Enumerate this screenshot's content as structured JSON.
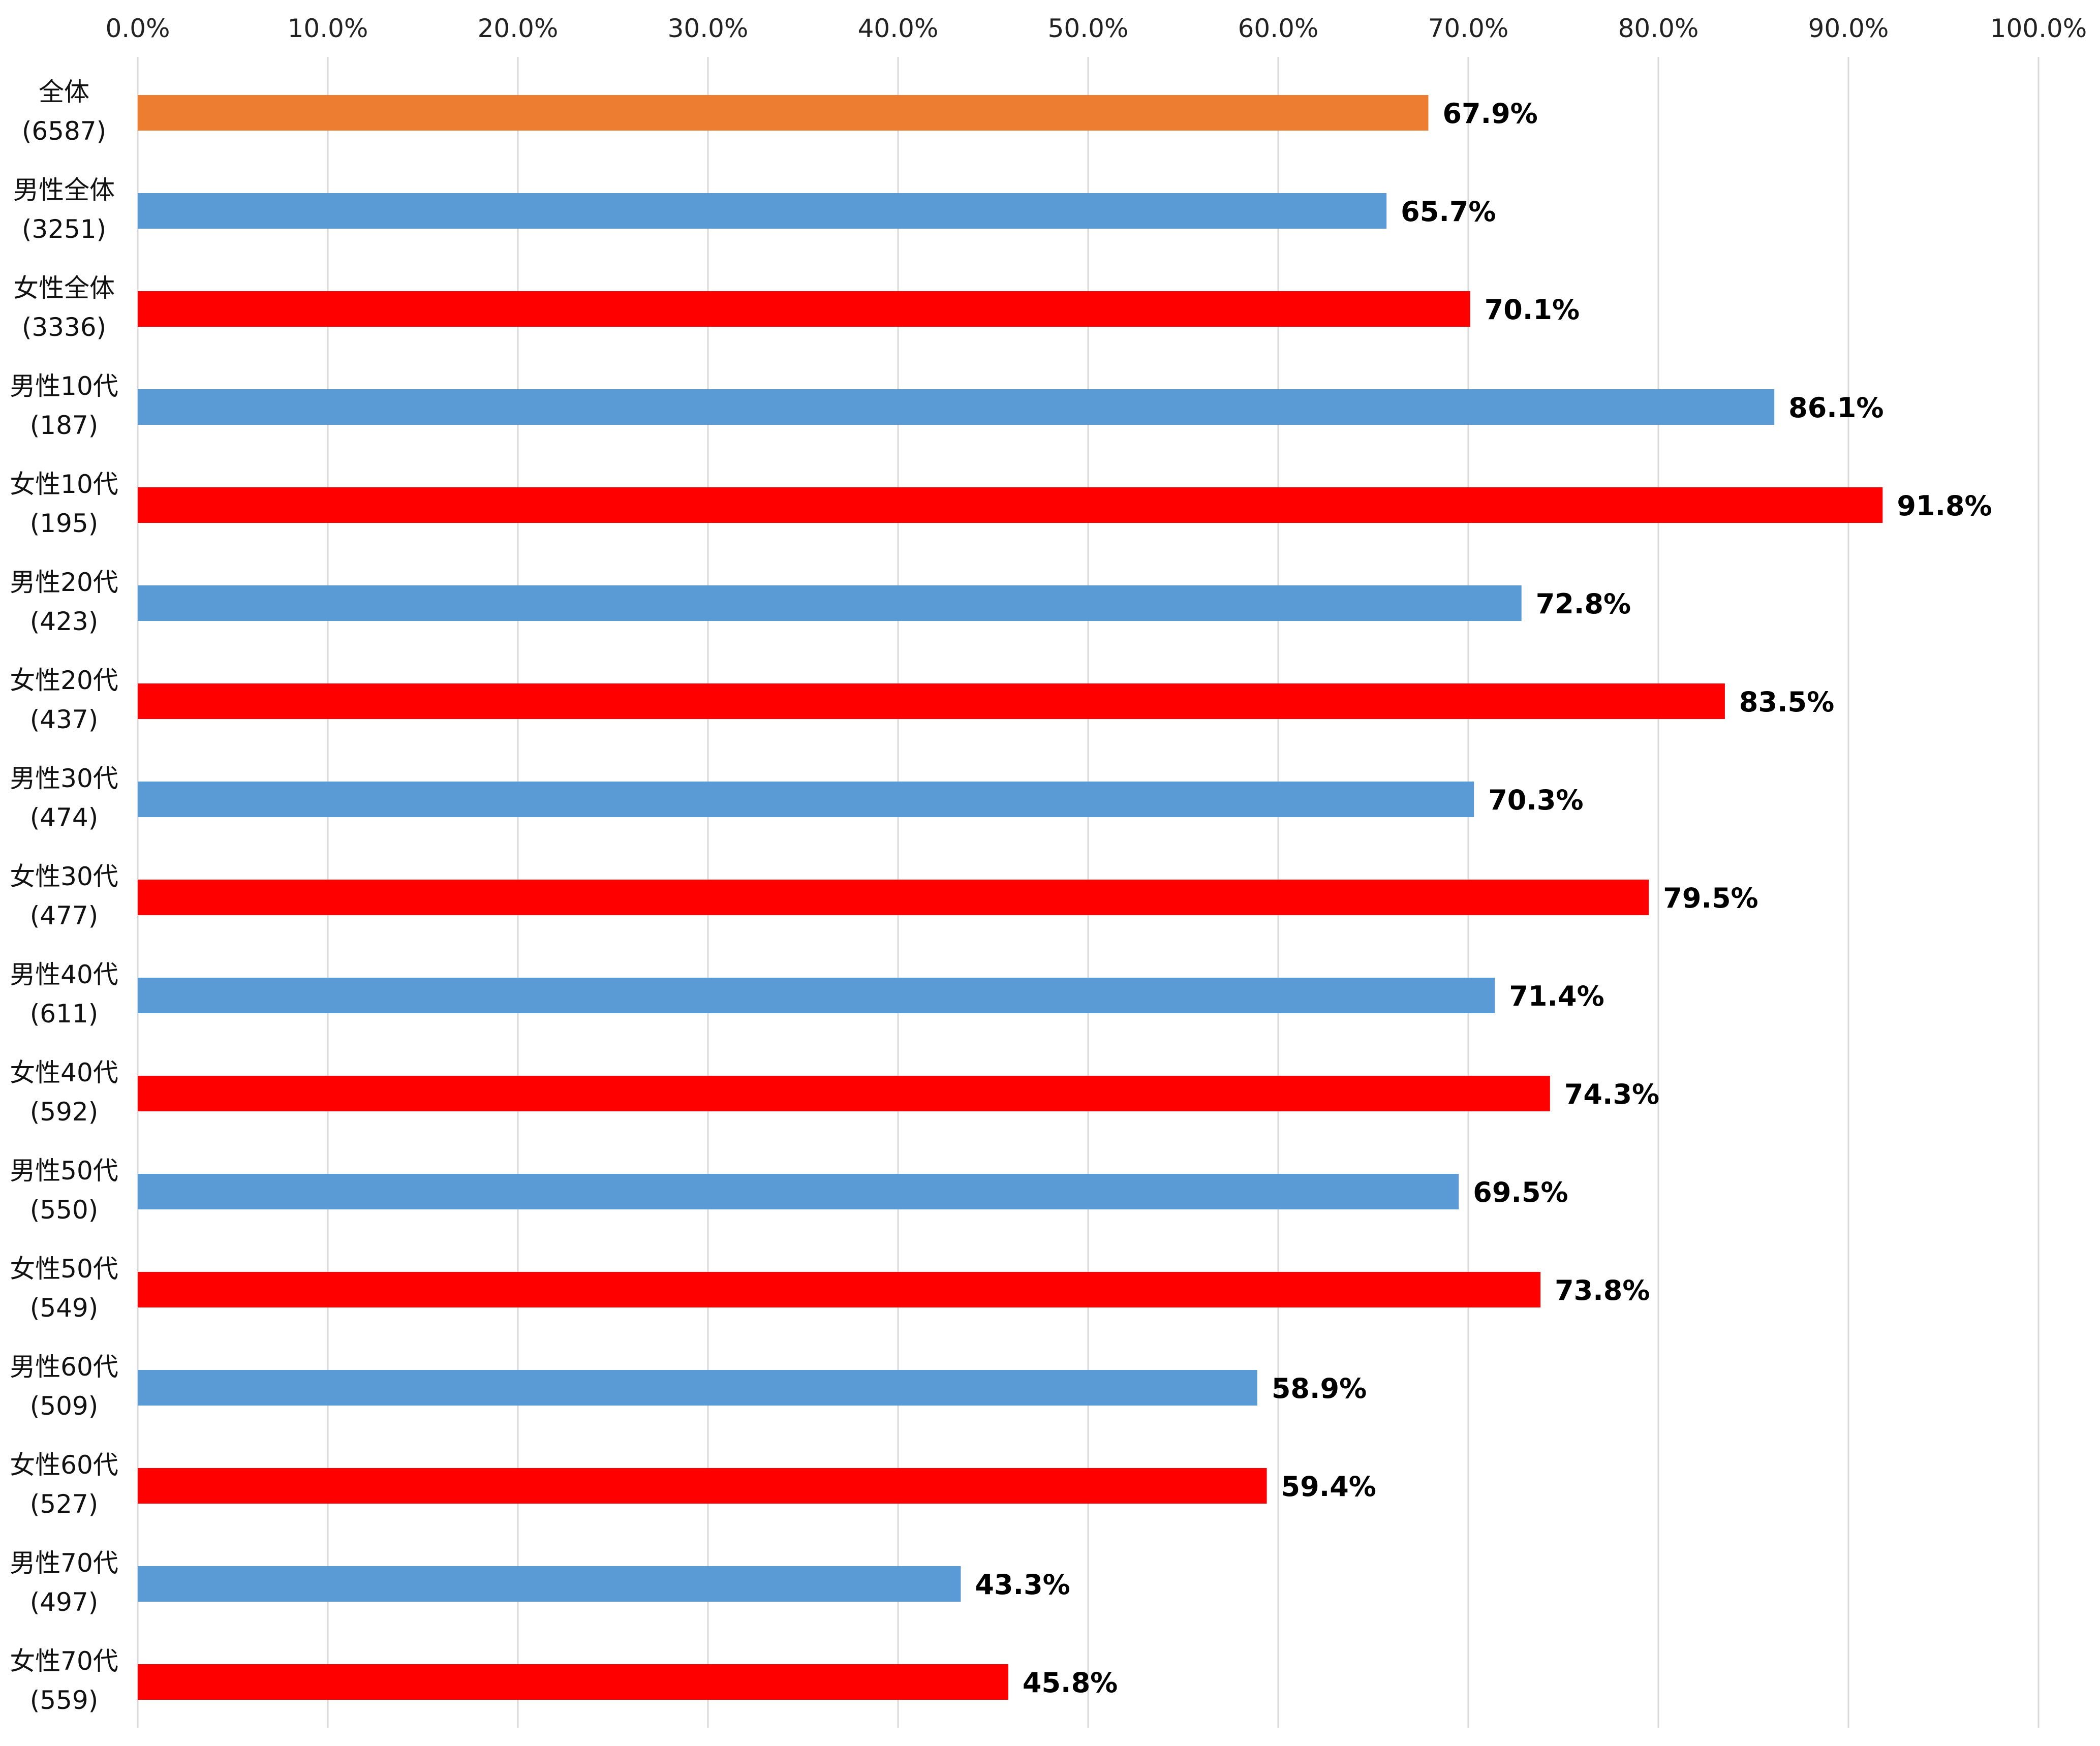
{
  "chart_data": {
    "type": "bar",
    "orientation": "horizontal",
    "title": "",
    "xlabel": "",
    "ylabel": "",
    "xlim": [
      0,
      100
    ],
    "x_ticks": [
      "0.0%",
      "10.0%",
      "20.0%",
      "30.0%",
      "40.0%",
      "50.0%",
      "60.0%",
      "70.0%",
      "80.0%",
      "90.0%",
      "100.0%"
    ],
    "x_axis_position": "top",
    "grid": true,
    "legend": "none",
    "colors": {
      "overall": "#ED7D31",
      "male": "#5B9BD5",
      "female": "#FF0000",
      "grid": "#D9D9D9"
    },
    "categories": [
      {
        "label": "全体",
        "n": "(6587)",
        "value": 67.9,
        "value_label": "67.9%",
        "group": "overall"
      },
      {
        "label": "男性全体",
        "n": "(3251)",
        "value": 65.7,
        "value_label": "65.7%",
        "group": "male"
      },
      {
        "label": "女性全体",
        "n": "(3336)",
        "value": 70.1,
        "value_label": "70.1%",
        "group": "female"
      },
      {
        "label": "男性10代",
        "n": "(187)",
        "value": 86.1,
        "value_label": "86.1%",
        "group": "male"
      },
      {
        "label": "女性10代",
        "n": "(195)",
        "value": 91.8,
        "value_label": "91.8%",
        "group": "female"
      },
      {
        "label": "男性20代",
        "n": "(423)",
        "value": 72.8,
        "value_label": "72.8%",
        "group": "male"
      },
      {
        "label": "女性20代",
        "n": "(437)",
        "value": 83.5,
        "value_label": "83.5%",
        "group": "female"
      },
      {
        "label": "男性30代",
        "n": "(474)",
        "value": 70.3,
        "value_label": "70.3%",
        "group": "male"
      },
      {
        "label": "女性30代",
        "n": "(477)",
        "value": 79.5,
        "value_label": "79.5%",
        "group": "female"
      },
      {
        "label": "男性40代",
        "n": "(611)",
        "value": 71.4,
        "value_label": "71.4%",
        "group": "male"
      },
      {
        "label": "女性40代",
        "n": "(592)",
        "value": 74.3,
        "value_label": "74.3%",
        "group": "female"
      },
      {
        "label": "男性50代",
        "n": "(550)",
        "value": 69.5,
        "value_label": "69.5%",
        "group": "male"
      },
      {
        "label": "女性50代",
        "n": "(549)",
        "value": 73.8,
        "value_label": "73.8%",
        "group": "female"
      },
      {
        "label": "男性60代",
        "n": "(509)",
        "value": 58.9,
        "value_label": "58.9%",
        "group": "male"
      },
      {
        "label": "女性60代",
        "n": "(527)",
        "value": 59.4,
        "value_label": "59.4%",
        "group": "female"
      },
      {
        "label": "男性70代",
        "n": "(497)",
        "value": 43.3,
        "value_label": "43.3%",
        "group": "male"
      },
      {
        "label": "女性70代",
        "n": "(559)",
        "value": 45.8,
        "value_label": "45.8%",
        "group": "female"
      }
    ]
  }
}
